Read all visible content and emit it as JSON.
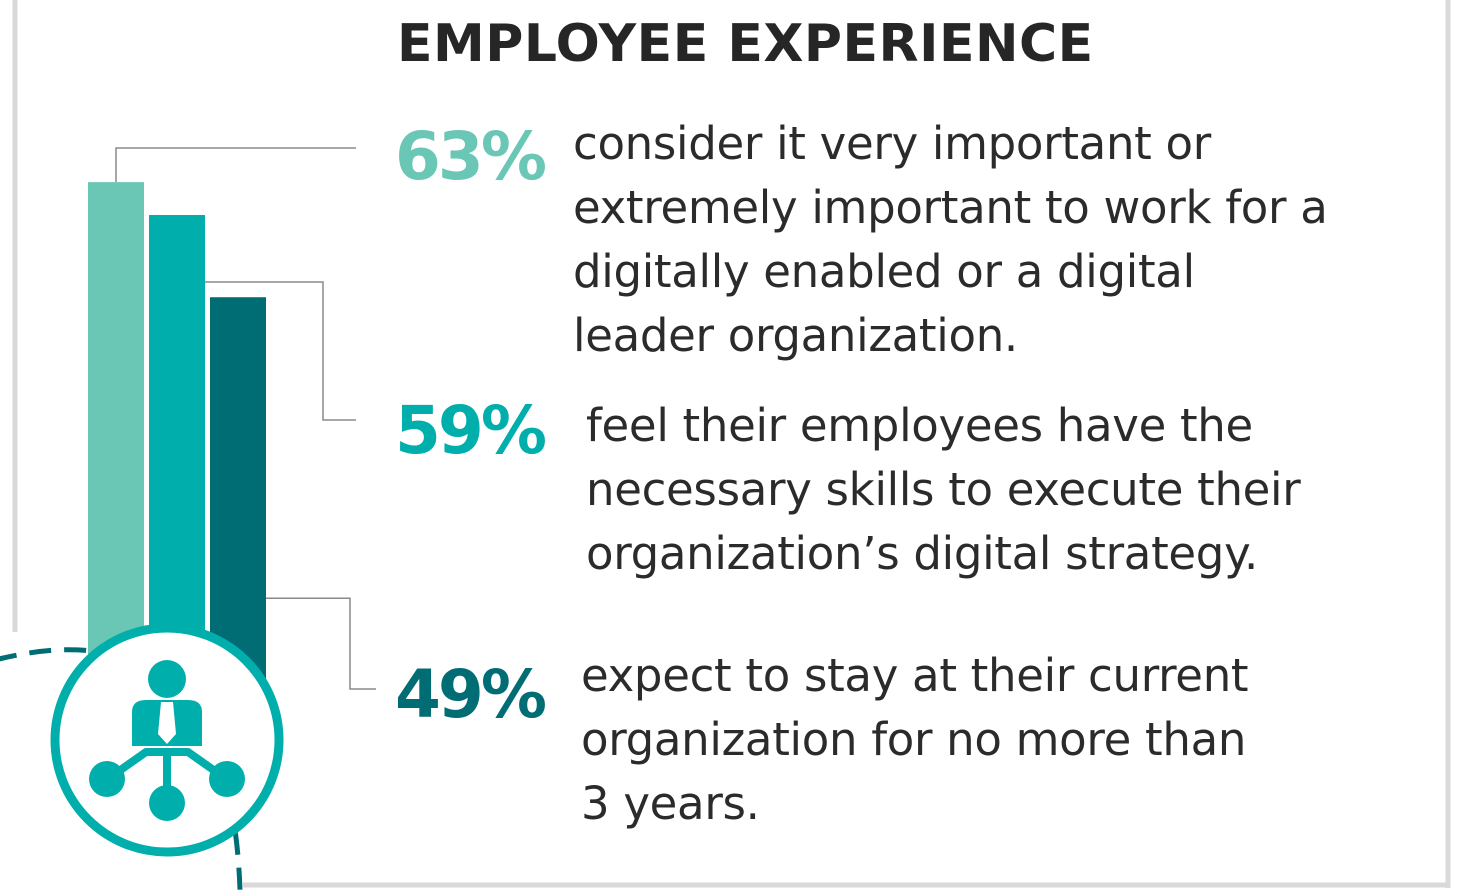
{
  "title": "EMPLOYEE EXPERIENCE",
  "colors": {
    "bar_light": "#6ac6b5",
    "bar_mid": "#00aeab",
    "bar_dark": "#006d75",
    "leader": "#8a8a8a",
    "frame": "#d9d9d9",
    "text": "#2b2b2b"
  },
  "icon": "employee-network-icon",
  "stats": [
    {
      "percent": "63%",
      "lines": [
        "consider it very important or",
        "extremely important to work for a",
        "digitally enabled or a digital",
        "leader organization."
      ]
    },
    {
      "percent": "59%",
      "lines": [
        "feel their employees have the",
        "necessary skills to execute their",
        "organization’s digital strategy."
      ]
    },
    {
      "percent": "49%",
      "lines": [
        "expect to stay at their current",
        "organization for no more than",
        "3 years."
      ]
    }
  ],
  "chart_data": {
    "type": "bar",
    "categories": [
      "63%",
      "59%",
      "49%"
    ],
    "values": [
      63,
      59,
      49
    ],
    "ylim": [
      0,
      100
    ],
    "grid": false,
    "legend": "none"
  }
}
